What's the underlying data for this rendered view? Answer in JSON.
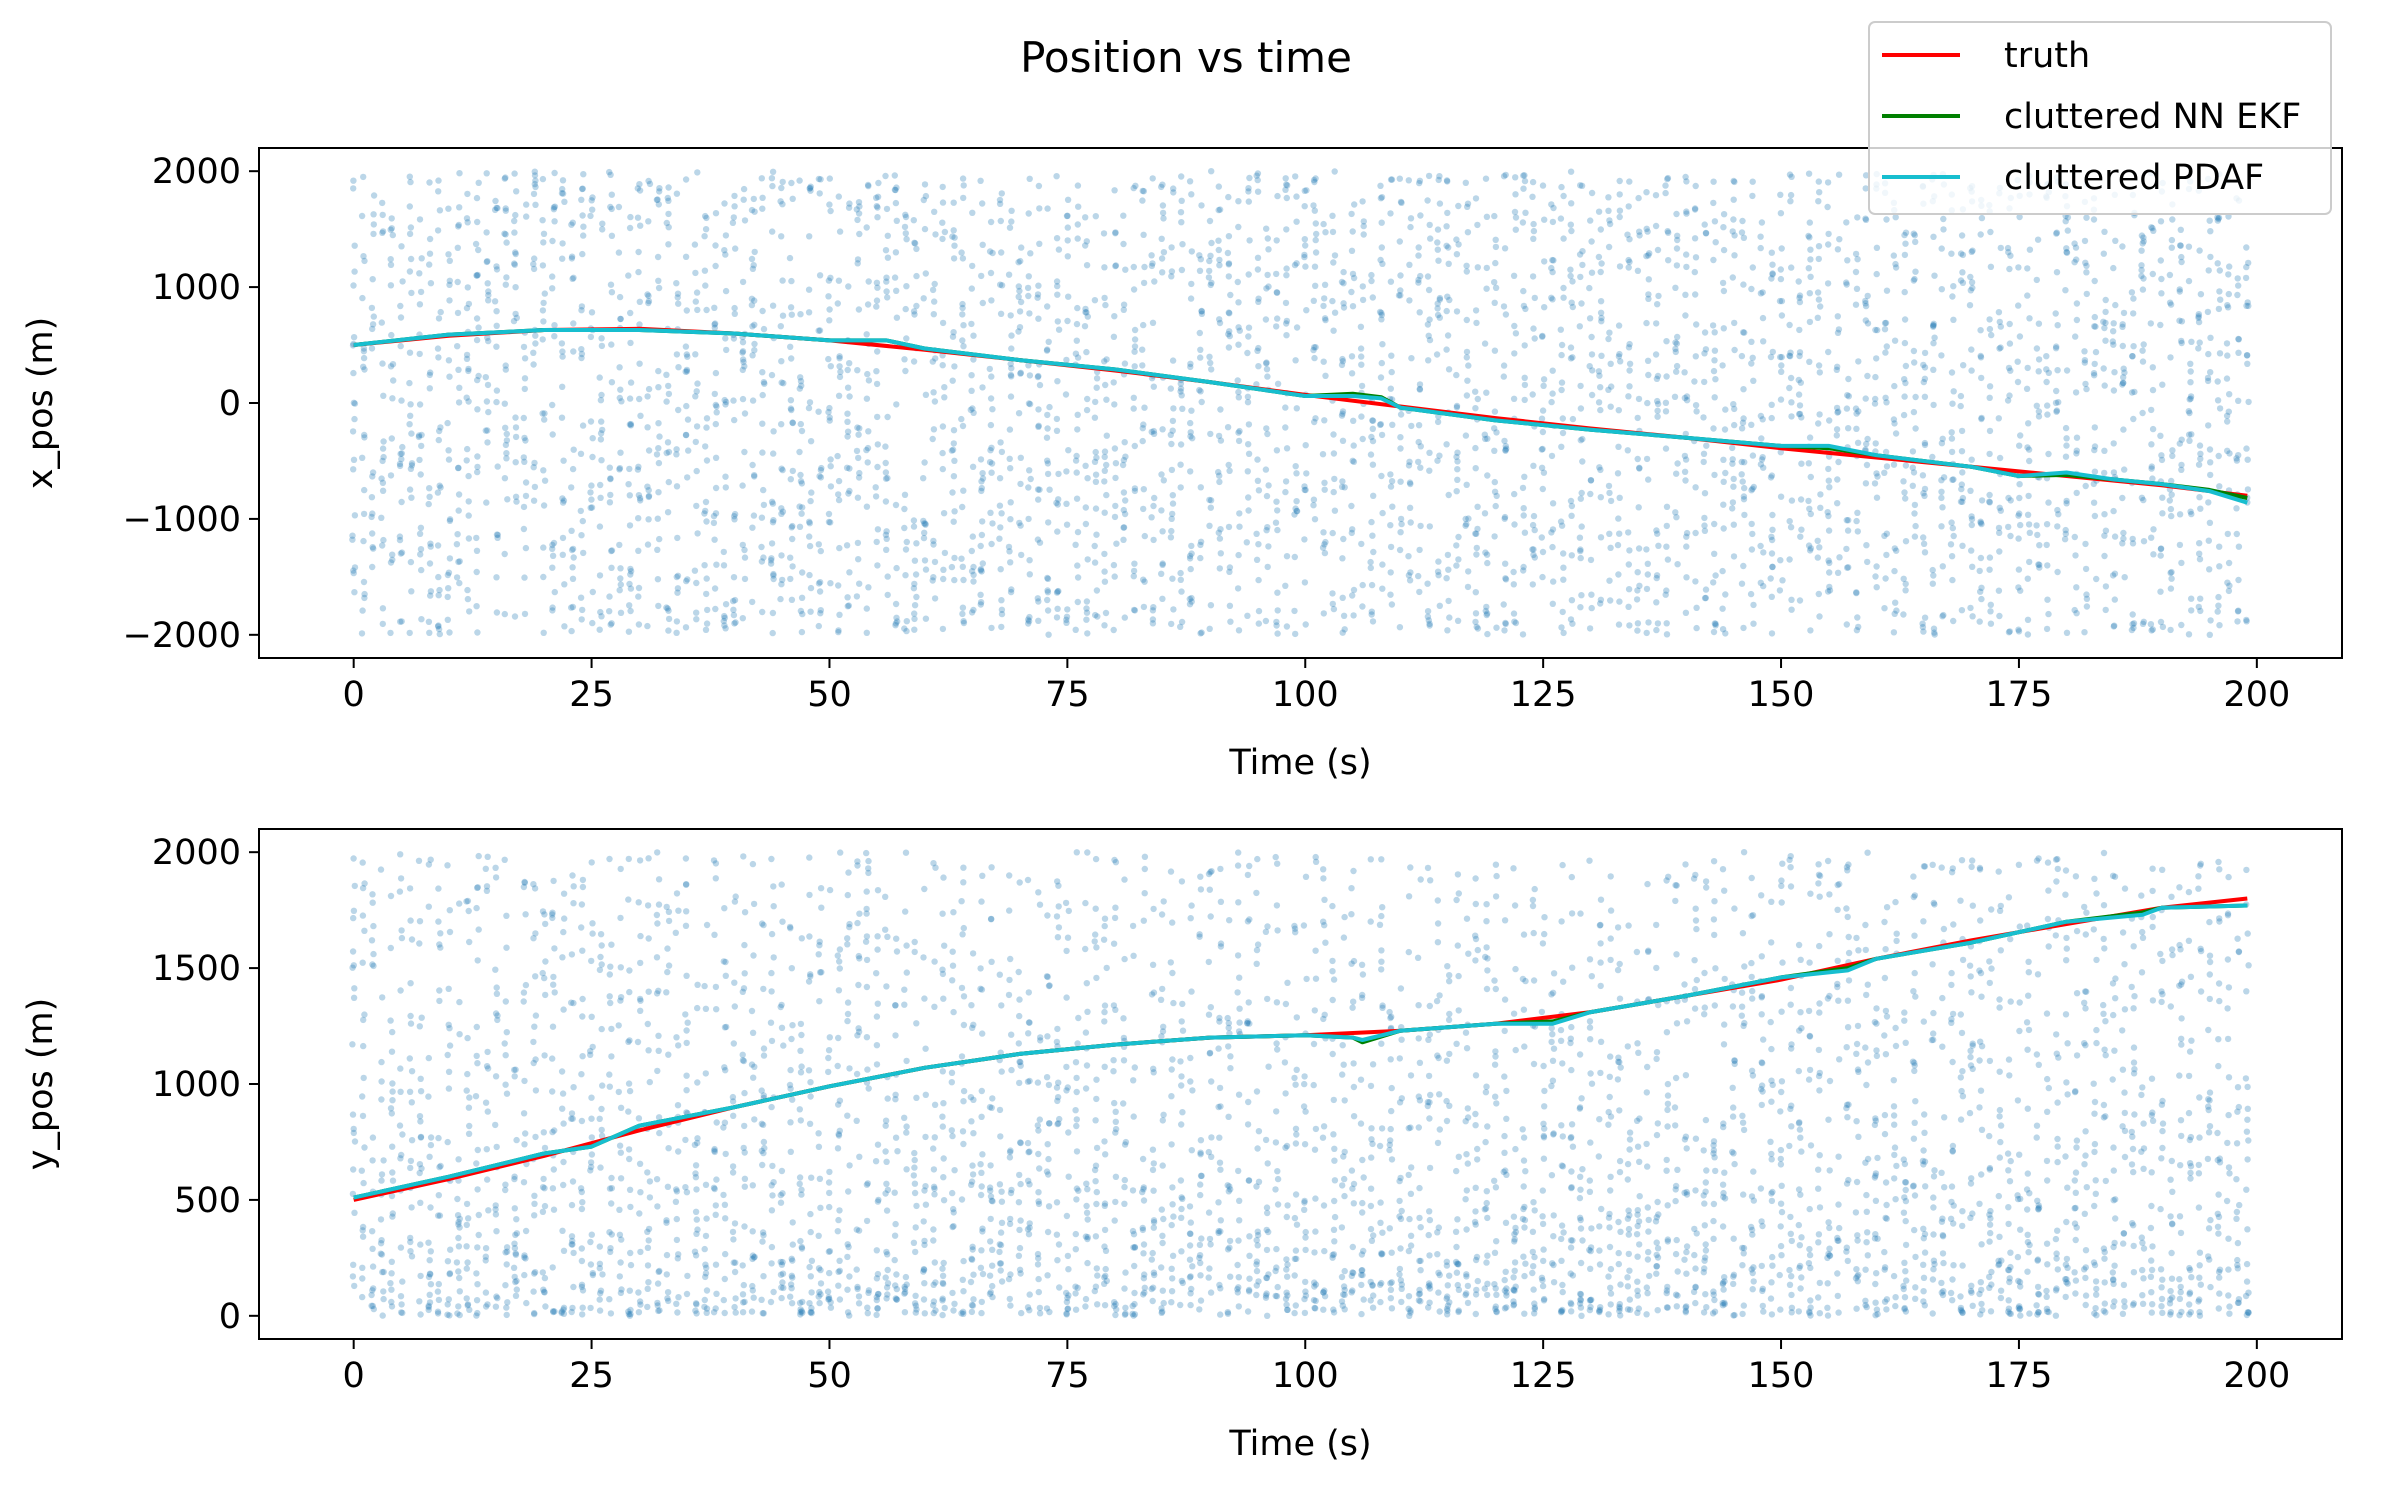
{
  "figure": {
    "title": "Position vs time"
  },
  "legend": {
    "placement": "upper-right",
    "entries": [
      {
        "label": "truth",
        "color": "#ff0000"
      },
      {
        "label": "cluttered NN EKF",
        "color": "#008000"
      },
      {
        "label": "cluttered PDAF",
        "color": "#17becf"
      }
    ]
  },
  "chart_data": [
    {
      "type": "line",
      "xlabel": "Time (s)",
      "ylabel": "x_pos (m)",
      "xlim": [
        -9.95,
        208.95
      ],
      "ylim": [
        -2200,
        2200
      ],
      "xticks": [
        0,
        25,
        50,
        75,
        100,
        125,
        150,
        175,
        200
      ],
      "yticks": [
        -2000,
        -1000,
        0,
        1000,
        2000
      ],
      "xtick_labels": [
        "0",
        "25",
        "50",
        "75",
        "100",
        "125",
        "150",
        "175",
        "200"
      ],
      "ytick_labels": [
        "−2000",
        "−1000",
        "0",
        "1000",
        "2000"
      ],
      "grid": false,
      "clutter": {
        "color": "#1f77b4",
        "alpha": 0.3,
        "x_range": [
          0,
          199
        ],
        "y_range": [
          -2000,
          2000
        ],
        "approx_points_per_step": 20
      },
      "series": [
        {
          "name": "truth",
          "color": "#ff0000",
          "x": [
            0,
            10,
            20,
            30,
            40,
            50,
            60,
            70,
            80,
            90,
            100,
            110,
            120,
            130,
            140,
            150,
            160,
            170,
            180,
            190,
            199
          ],
          "y": [
            500,
            580,
            630,
            640,
            600,
            540,
            460,
            370,
            280,
            180,
            70,
            -30,
            -130,
            -220,
            -300,
            -390,
            -470,
            -550,
            -630,
            -710,
            -800
          ]
        },
        {
          "name": "cluttered NN EKF",
          "color": "#008000",
          "x": [
            0,
            10,
            20,
            30,
            40,
            50,
            56,
            60,
            70,
            80,
            90,
            100,
            105,
            108,
            110,
            120,
            130,
            140,
            150,
            155,
            160,
            170,
            175,
            180,
            185,
            190,
            195,
            199
          ],
          "y": [
            500,
            590,
            630,
            630,
            600,
            540,
            540,
            470,
            370,
            290,
            180,
            60,
            80,
            50,
            -40,
            -150,
            -230,
            -300,
            -370,
            -390,
            -450,
            -550,
            -630,
            -620,
            -660,
            -700,
            -750,
            -820
          ]
        },
        {
          "name": "cluttered PDAF",
          "color": "#17becf",
          "x": [
            0,
            10,
            20,
            30,
            40,
            50,
            56,
            60,
            70,
            80,
            90,
            100,
            105,
            108,
            110,
            120,
            130,
            140,
            150,
            155,
            160,
            170,
            175,
            180,
            185,
            190,
            195,
            199
          ],
          "y": [
            500,
            590,
            630,
            630,
            600,
            540,
            540,
            470,
            370,
            290,
            180,
            60,
            60,
            40,
            -40,
            -150,
            -230,
            -300,
            -370,
            -370,
            -450,
            -550,
            -630,
            -600,
            -660,
            -700,
            -760,
            -860
          ]
        }
      ]
    },
    {
      "type": "line",
      "xlabel": "Time (s)",
      "ylabel": "y_pos (m)",
      "xlim": [
        -9.95,
        208.95
      ],
      "ylim": [
        -100,
        2100
      ],
      "xticks": [
        0,
        25,
        50,
        75,
        100,
        125,
        150,
        175,
        200
      ],
      "yticks": [
        0,
        500,
        1000,
        1500,
        2000
      ],
      "xtick_labels": [
        "0",
        "25",
        "50",
        "75",
        "100",
        "125",
        "150",
        "175",
        "200"
      ],
      "ytick_labels": [
        "0",
        "500",
        "1000",
        "1500",
        "2000"
      ],
      "grid": false,
      "clutter": {
        "color": "#1f77b4",
        "alpha": 0.3,
        "x_range": [
          0,
          199
        ],
        "y_range": [
          0,
          2000
        ],
        "approx_points_per_step": 20
      },
      "series": [
        {
          "name": "truth",
          "color": "#ff0000",
          "x": [
            0,
            10,
            20,
            30,
            40,
            50,
            60,
            70,
            80,
            90,
            100,
            110,
            120,
            130,
            140,
            150,
            160,
            170,
            180,
            190,
            199
          ],
          "y": [
            500,
            590,
            690,
            800,
            900,
            990,
            1070,
            1130,
            1170,
            1200,
            1210,
            1230,
            1260,
            1310,
            1380,
            1450,
            1540,
            1620,
            1690,
            1760,
            1800
          ]
        },
        {
          "name": "cluttered NN EKF",
          "color": "#008000",
          "x": [
            0,
            10,
            20,
            25,
            30,
            40,
            50,
            60,
            70,
            80,
            90,
            100,
            105,
            106,
            110,
            120,
            126,
            130,
            140,
            150,
            157,
            160,
            170,
            180,
            188,
            190,
            199
          ],
          "y": [
            510,
            600,
            700,
            730,
            820,
            900,
            990,
            1070,
            1130,
            1170,
            1200,
            1210,
            1200,
            1180,
            1230,
            1260,
            1270,
            1310,
            1380,
            1460,
            1500,
            1540,
            1610,
            1700,
            1740,
            1760,
            1770
          ]
        },
        {
          "name": "cluttered PDAF",
          "color": "#17becf",
          "x": [
            0,
            10,
            20,
            25,
            30,
            40,
            50,
            60,
            70,
            80,
            90,
            100,
            105,
            106,
            110,
            120,
            126,
            130,
            140,
            150,
            157,
            160,
            170,
            180,
            188,
            190,
            199
          ],
          "y": [
            510,
            600,
            700,
            730,
            820,
            900,
            990,
            1070,
            1130,
            1170,
            1200,
            1210,
            1200,
            1190,
            1230,
            1260,
            1260,
            1310,
            1380,
            1460,
            1490,
            1540,
            1610,
            1700,
            1730,
            1760,
            1770
          ]
        }
      ]
    }
  ]
}
